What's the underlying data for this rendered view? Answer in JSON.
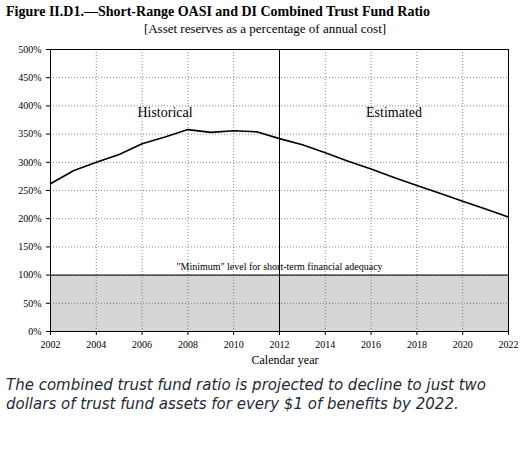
{
  "chart_data": {
    "type": "line",
    "title": "Figure II.D1.—Short-Range OASI and DI Combined Trust Fund Ratio",
    "subtitle": "[Asset reserves as a percentage of annual cost]",
    "x_label": "Calendar year",
    "x": [
      2002,
      2003,
      2004,
      2005,
      2006,
      2007,
      2008,
      2009,
      2010,
      2011,
      2012,
      2013,
      2014,
      2015,
      2016,
      2017,
      2018,
      2019,
      2020,
      2021,
      2022
    ],
    "series": [
      {
        "color": "#000000",
        "values": [
          262,
          285,
          300,
          314,
          333,
          345,
          358,
          353,
          356,
          354,
          342,
          331,
          317,
          302,
          288,
          273,
          259,
          245,
          231,
          217,
          203
        ]
      }
    ],
    "xlim": [
      2002,
      2022
    ],
    "xticks": [
      2002,
      2004,
      2006,
      2008,
      2010,
      2012,
      2014,
      2016,
      2018,
      2020,
      2022
    ],
    "ylim": [
      0,
      500
    ],
    "yticks": [
      {
        "value": 0,
        "label": "0%"
      },
      {
        "value": 50,
        "label": "50%"
      },
      {
        "value": 100,
        "label": "100%"
      },
      {
        "value": 150,
        "label": "150%"
      },
      {
        "value": 200,
        "label": "200%"
      },
      {
        "value": 250,
        "label": "250%"
      },
      {
        "value": 300,
        "label": "300%"
      },
      {
        "value": 350,
        "label": "350%"
      },
      {
        "value": 400,
        "label": "400%"
      },
      {
        "value": 450,
        "label": "450%"
      },
      {
        "value": 500,
        "label": "500%"
      }
    ],
    "grid": true,
    "projection_start": 2012,
    "minimum_level": 100,
    "annotations": {
      "historical": "Historical",
      "estimated": "Estimated",
      "minimum": "\"Minimum\" level for short-term financial adequacy"
    },
    "caption": "The combined trust fund ratio is projected to decline to just two dollars of trust fund assets for every $1 of benefits by 2022."
  }
}
